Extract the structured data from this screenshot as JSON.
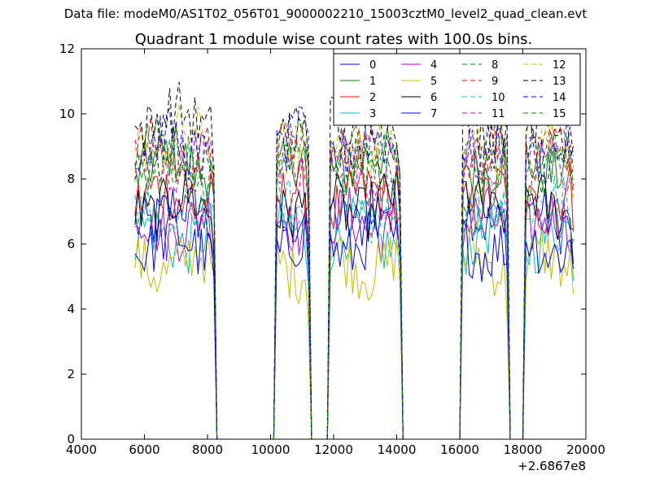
{
  "suptitle": "Data file: modeM0/AS1T02_056T01_9000002210_15003cztM0_level2_quad_clean.evt",
  "chart_data": {
    "type": "line",
    "title": "Quadrant 1 module wise count rates with 100.0s bins.",
    "xlabel": "",
    "ylabel": "",
    "x_offset_label": "+2.6867e8",
    "xlim": [
      4000,
      20000
    ],
    "ylim": [
      0,
      12
    ],
    "xticks": [
      4000,
      6000,
      8000,
      10000,
      12000,
      14000,
      16000,
      18000,
      20000
    ],
    "xtick_labels": [
      "4000",
      "6000",
      "8000",
      "10000",
      "12000",
      "14000",
      "16000",
      "18000",
      "20000"
    ],
    "yticks": [
      0,
      2,
      4,
      6,
      8,
      10,
      12
    ],
    "ytick_labels": [
      "0",
      "2",
      "4",
      "6",
      "8",
      "10",
      "12"
    ],
    "legend_position": "upper-right, 4 columns",
    "segments": [
      {
        "start": 5700,
        "end": 8200
      },
      {
        "start": 10200,
        "end": 11200
      },
      {
        "start": 11900,
        "end": 14100
      },
      {
        "start": 16100,
        "end": 17500
      },
      {
        "start": 18100,
        "end": 19600
      }
    ],
    "time_bin_seconds": 100,
    "series": [
      {
        "name": "0",
        "color": "#0000ff",
        "dash": "solid",
        "level": 6.9
      },
      {
        "name": "1",
        "color": "#008000",
        "dash": "solid",
        "level": 8.5
      },
      {
        "name": "2",
        "color": "#ff0000",
        "dash": "solid",
        "level": 7.4
      },
      {
        "name": "3",
        "color": "#00bfbf",
        "dash": "solid",
        "level": 6.2
      },
      {
        "name": "4",
        "color": "#bf00bf",
        "dash": "solid",
        "level": 6.6
      },
      {
        "name": "5",
        "color": "#bfbf00",
        "dash": "solid",
        "level": 5.4
      },
      {
        "name": "6",
        "color": "#000000",
        "dash": "solid",
        "level": 7.2
      },
      {
        "name": "7",
        "color": "#0000ff",
        "dash": "solid",
        "level": 6.0
      },
      {
        "name": "8",
        "color": "#008000",
        "dash": "dashed",
        "level": 8.9
      },
      {
        "name": "9",
        "color": "#ff0000",
        "dash": "dashed",
        "level": 8.7
      },
      {
        "name": "10",
        "color": "#00bfbf",
        "dash": "dashed",
        "level": 7.0
      },
      {
        "name": "11",
        "color": "#bf00bf",
        "dash": "dashed",
        "level": 8.4
      },
      {
        "name": "12",
        "color": "#bfbf00",
        "dash": "dashed",
        "level": 9.2
      },
      {
        "name": "13",
        "color": "#000000",
        "dash": "dashed",
        "level": 9.8
      },
      {
        "name": "14",
        "color": "#0000ff",
        "dash": "dashed",
        "level": 9.0
      },
      {
        "name": "15",
        "color": "#008000",
        "dash": "dashed",
        "level": 8.1
      }
    ]
  }
}
